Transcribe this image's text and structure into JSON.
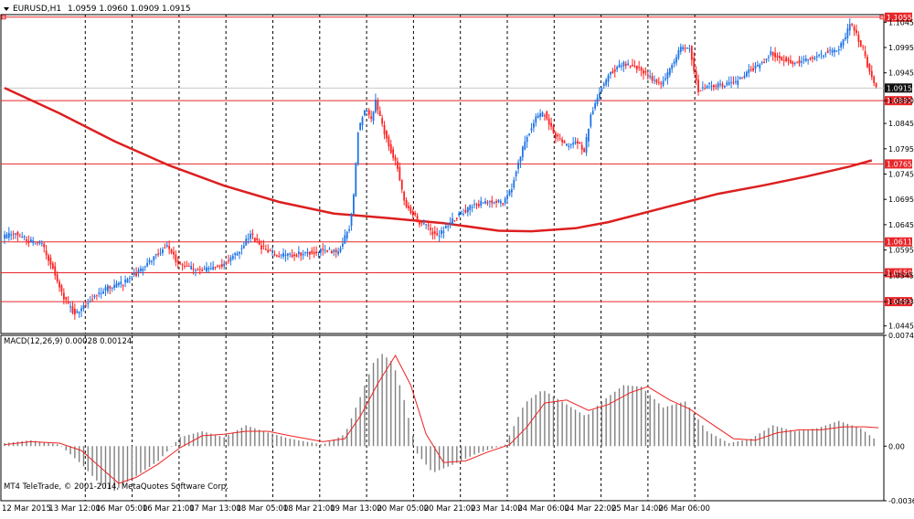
{
  "header": {
    "symbol_label": "EURUSD,H1",
    "ohlc_text": "1.0959 1.0960 1.0909 1.0915"
  },
  "macd_header": {
    "label": "MACD(12,26,9) 0.00028 0.00124"
  },
  "footer": {
    "copyright": "MT4 TeleTrade, © 2001-2014, MetaQuotes Software Corp."
  },
  "colors": {
    "bull": "#1e73e6",
    "bear": "#ff2020",
    "level_line": "#e8262a",
    "ma_line": "#dd1f1f",
    "histogram": "#808080",
    "signal": "#ee2222",
    "current_price_bg": "#111111"
  },
  "chart_data": [
    {
      "type": "candlestick",
      "title": "EURUSD,H1",
      "x_ticks": [
        "12 Mar 2015",
        "13 Mar 12:00",
        "16 Mar 05:00",
        "16 Mar 21:00",
        "17 Mar 13:00",
        "18 Mar 05:00",
        "18 Mar 21:00",
        "19 Mar 13:00",
        "20 Mar 05:00",
        "20 Mar 21:00",
        "23 Mar 14:00",
        "24 Mar 06:00",
        "24 Mar 22:00",
        "25 Mar 14:00",
        "26 Mar 06:00"
      ],
      "y_ticks": [
        "1.1045",
        "1.0995",
        "1.0945",
        "1.0890",
        "1.0845",
        "1.0795",
        "1.0745",
        "1.0695",
        "1.0645",
        "1.0595",
        "1.0545",
        "1.0493",
        "1.0445"
      ],
      "ylim": [
        1.043,
        1.106
      ],
      "current_price": "1.0915",
      "horizontal_levels": [
        {
          "value": 1.1055,
          "label": "1.1055"
        },
        {
          "value": 1.089,
          "label": "1.0890"
        },
        {
          "value": 1.0765,
          "label": "1.0765"
        },
        {
          "value": 1.0611,
          "label": "1.0611"
        },
        {
          "value": 1.055,
          "label": "1.0550"
        },
        {
          "value": 1.0493,
          "label": "1.0493"
        }
      ],
      "moving_average": [
        [
          0,
          1.0915
        ],
        [
          25,
          1.0865
        ],
        [
          50,
          1.081
        ],
        [
          75,
          1.0762
        ],
        [
          100,
          1.0722
        ],
        [
          125,
          1.069
        ],
        [
          150,
          1.0667
        ],
        [
          175,
          1.0658
        ],
        [
          200,
          1.0648
        ],
        [
          225,
          1.0633
        ],
        [
          240,
          1.0632
        ],
        [
          260,
          1.0638
        ],
        [
          275,
          1.065
        ],
        [
          300,
          1.0678
        ],
        [
          325,
          1.0706
        ],
        [
          345,
          1.0722
        ],
        [
          365,
          1.074
        ],
        [
          385,
          1.076
        ],
        [
          395,
          1.0772
        ]
      ],
      "price_path": [
        [
          0,
          1.062
        ],
        [
          6,
          1.0628
        ],
        [
          12,
          1.0612
        ],
        [
          18,
          1.0605
        ],
        [
          23,
          1.056
        ],
        [
          27,
          1.051
        ],
        [
          30,
          1.0485
        ],
        [
          33,
          1.047
        ],
        [
          37,
          1.0485
        ],
        [
          42,
          1.0505
        ],
        [
          48,
          1.052
        ],
        [
          55,
          1.053
        ],
        [
          63,
          1.0555
        ],
        [
          70,
          1.0585
        ],
        [
          75,
          1.0605
        ],
        [
          79,
          1.0575
        ],
        [
          85,
          1.056
        ],
        [
          92,
          1.0555
        ],
        [
          100,
          1.0565
        ],
        [
          108,
          1.0595
        ],
        [
          113,
          1.0625
        ],
        [
          118,
          1.06
        ],
        [
          124,
          1.0585
        ],
        [
          132,
          1.0585
        ],
        [
          140,
          1.059
        ],
        [
          147,
          1.0595
        ],
        [
          153,
          1.059
        ],
        [
          156,
          1.062
        ],
        [
          158,
          1.064
        ],
        [
          160,
          1.07
        ],
        [
          162,
          1.083
        ],
        [
          164,
          1.086
        ],
        [
          166,
          1.0875
        ],
        [
          168,
          1.085
        ],
        [
          170,
          1.089
        ],
        [
          173,
          1.084
        ],
        [
          177,
          1.079
        ],
        [
          180,
          1.076
        ],
        [
          183,
          1.069
        ],
        [
          186,
          1.067
        ],
        [
          190,
          1.065
        ],
        [
          194,
          1.064
        ],
        [
          198,
          1.062
        ],
        [
          202,
          1.064
        ],
        [
          208,
          1.0665
        ],
        [
          215,
          1.0685
        ],
        [
          222,
          1.069
        ],
        [
          228,
          1.069
        ],
        [
          232,
          1.072
        ],
        [
          235,
          1.077
        ],
        [
          239,
          1.082
        ],
        [
          243,
          1.0855
        ],
        [
          247,
          1.0865
        ],
        [
          252,
          1.082
        ],
        [
          257,
          1.08
        ],
        [
          262,
          1.081
        ],
        [
          265,
          1.079
        ],
        [
          268,
          1.086
        ],
        [
          272,
          1.091
        ],
        [
          277,
          1.0945
        ],
        [
          283,
          1.0965
        ],
        [
          290,
          1.0955
        ],
        [
          295,
          1.0935
        ],
        [
          300,
          1.092
        ],
        [
          305,
          1.096
        ],
        [
          309,
          1.0995
        ],
        [
          313,
          1.0995
        ],
        [
          317,
          1.091
        ],
        [
          321,
          1.092
        ],
        [
          328,
          1.092
        ],
        [
          334,
          1.0925
        ],
        [
          340,
          1.095
        ],
        [
          345,
          1.096
        ],
        [
          350,
          1.0985
        ],
        [
          354,
          1.0975
        ],
        [
          360,
          1.0965
        ],
        [
          365,
          1.097
        ],
        [
          370,
          1.0975
        ],
        [
          375,
          1.0985
        ],
        [
          380,
          1.099
        ],
        [
          384,
          1.1015
        ],
        [
          386,
          1.1045
        ],
        [
          389,
          1.102
        ],
        [
          392,
          1.099
        ],
        [
          395,
          1.0945
        ],
        [
          398,
          1.0915
        ]
      ]
    },
    {
      "type": "bar",
      "title": "MACD(12,26,9)",
      "y_ticks": [
        "0.00745",
        "0.00",
        "-0.00367"
      ],
      "ylim": [
        -0.00367,
        0.00745
      ],
      "histogram": [
        [
          0,
          0.0002
        ],
        [
          12,
          0.0004
        ],
        [
          25,
          0.0001
        ],
        [
          35,
          -0.0012
        ],
        [
          45,
          -0.0028
        ],
        [
          50,
          -0.003
        ],
        [
          58,
          -0.0022
        ],
        [
          70,
          -0.001
        ],
        [
          80,
          0.0006
        ],
        [
          90,
          0.001
        ],
        [
          100,
          0.0006
        ],
        [
          110,
          0.0014
        ],
        [
          118,
          0.001
        ],
        [
          130,
          0.0005
        ],
        [
          145,
          0.0001
        ],
        [
          155,
          0.0008
        ],
        [
          162,
          0.0033
        ],
        [
          168,
          0.0056
        ],
        [
          172,
          0.0062
        ],
        [
          177,
          0.0056
        ],
        [
          182,
          0.0031
        ],
        [
          188,
          -0.0005
        ],
        [
          195,
          -0.0018
        ],
        [
          205,
          -0.0012
        ],
        [
          215,
          -0.0005
        ],
        [
          228,
          0.0001
        ],
        [
          237,
          0.0029
        ],
        [
          245,
          0.0038
        ],
        [
          255,
          0.0029
        ],
        [
          265,
          0.002
        ],
        [
          272,
          0.003
        ],
        [
          282,
          0.0041
        ],
        [
          290,
          0.004
        ],
        [
          300,
          0.0026
        ],
        [
          310,
          0.003
        ],
        [
          320,
          0.001
        ],
        [
          330,
          0.0002
        ],
        [
          340,
          0.0005
        ],
        [
          350,
          0.0014
        ],
        [
          360,
          0.001
        ],
        [
          370,
          0.0012
        ],
        [
          380,
          0.0017
        ],
        [
          390,
          0.0012
        ],
        [
          398,
          0.00028
        ]
      ],
      "signal": [
        [
          0,
          0.0001
        ],
        [
          12,
          0.0003
        ],
        [
          25,
          0.0002
        ],
        [
          35,
          -0.0003
        ],
        [
          45,
          -0.0016
        ],
        [
          52,
          -0.0025
        ],
        [
          60,
          -0.0021
        ],
        [
          70,
          -0.0012
        ],
        [
          80,
          -0.0001
        ],
        [
          90,
          0.0007
        ],
        [
          100,
          0.0008
        ],
        [
          110,
          0.001
        ],
        [
          120,
          0.001
        ],
        [
          130,
          0.0007
        ],
        [
          145,
          0.0003
        ],
        [
          155,
          0.0005
        ],
        [
          162,
          0.002
        ],
        [
          170,
          0.0042
        ],
        [
          178,
          0.0061
        ],
        [
          185,
          0.0041
        ],
        [
          192,
          0.0008
        ],
        [
          200,
          -0.0011
        ],
        [
          210,
          -0.001
        ],
        [
          220,
          -0.0004
        ],
        [
          230,
          0.0001
        ],
        [
          238,
          0.0013
        ],
        [
          246,
          0.0029
        ],
        [
          256,
          0.0031
        ],
        [
          266,
          0.0024
        ],
        [
          275,
          0.0028
        ],
        [
          285,
          0.0036
        ],
        [
          293,
          0.004
        ],
        [
          303,
          0.0031
        ],
        [
          312,
          0.0025
        ],
        [
          322,
          0.0015
        ],
        [
          332,
          0.0005
        ],
        [
          342,
          0.0004
        ],
        [
          352,
          0.0009
        ],
        [
          362,
          0.0011
        ],
        [
          372,
          0.0011
        ],
        [
          382,
          0.0013
        ],
        [
          392,
          0.0013
        ],
        [
          398,
          0.00124
        ]
      ]
    }
  ]
}
